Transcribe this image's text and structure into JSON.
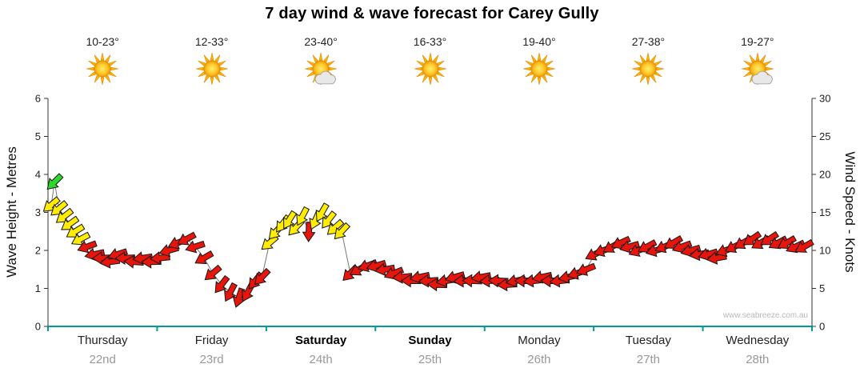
{
  "title": "7 day wind & wave forecast for Carey Gully",
  "watermark": "www.seabreeze.com.au",
  "axes": {
    "left_label": "Wave Height - Metres",
    "right_label": "Wind Speed - Knots",
    "left_ticks": [
      0,
      1,
      2,
      3,
      4,
      5,
      6
    ],
    "right_ticks": [
      0,
      5,
      10,
      15,
      20,
      25,
      30
    ]
  },
  "colors": {
    "axis_bottom": "#009a9a",
    "axis_side": "#333333",
    "arrow_green": "#2cd82c",
    "arrow_yellow": "#ffec00",
    "arrow_red": "#e8150d",
    "trend_line": "#777777"
  },
  "days": [
    {
      "name": "Thursday",
      "date": "22nd",
      "temp": "10-23°",
      "icon": "sunny",
      "bold": false
    },
    {
      "name": "Friday",
      "date": "23rd",
      "temp": "12-33°",
      "icon": "sunny",
      "bold": false
    },
    {
      "name": "Saturday",
      "date": "24th",
      "temp": "23-40°",
      "icon": "partly-cloudy",
      "bold": true
    },
    {
      "name": "Sunday",
      "date": "25th",
      "temp": "16-33°",
      "icon": "sunny",
      "bold": true
    },
    {
      "name": "Monday",
      "date": "26th",
      "temp": "19-40°",
      "icon": "sunny",
      "bold": false
    },
    {
      "name": "Tuesday",
      "date": "27th",
      "temp": "27-38°",
      "icon": "sunny",
      "bold": false
    },
    {
      "name": "Wednesday",
      "date": "28th",
      "temp": "19-27°",
      "icon": "partly-cloudy",
      "bold": false
    }
  ],
  "chart_data": {
    "type": "line",
    "title": "7 day wind & wave forecast for Carey Gully",
    "ylabel_left": "Wave Height - Metres",
    "ylabel_right": "Wind Speed - Knots",
    "ylim_left": [
      0,
      6
    ],
    "ylim_right": [
      0,
      30
    ],
    "x_categories": [
      "Thursday 22nd",
      "Friday 23rd",
      "Saturday 24th",
      "Sunday 25th",
      "Monday 26th",
      "Tuesday 27th",
      "Wednesday 28th"
    ],
    "grid": false,
    "legend": "none",
    "series_note": "wind speed in knots shown as direction arrows; color G=green Y=yellow R=red; t = days from Thursday 00:00; rot = arrow heading in degrees (0=right,90=down,180=left)",
    "wind_points": [
      [
        0.03,
        16.0,
        "Y",
        140
      ],
      [
        0.06,
        19.0,
        "G",
        135
      ],
      [
        0.1,
        15.5,
        "Y",
        140
      ],
      [
        0.15,
        14.5,
        "Y",
        142
      ],
      [
        0.2,
        13.5,
        "Y",
        145
      ],
      [
        0.25,
        12.5,
        "Y",
        148
      ],
      [
        0.3,
        11.5,
        "Y",
        152
      ],
      [
        0.36,
        10.5,
        "R",
        160
      ],
      [
        0.43,
        9.5,
        "R",
        168
      ],
      [
        0.5,
        9.0,
        "R",
        178
      ],
      [
        0.57,
        8.5,
        "R",
        172
      ],
      [
        0.64,
        9.5,
        "R",
        162
      ],
      [
        0.71,
        9.0,
        "R",
        178
      ],
      [
        0.79,
        8.5,
        "R",
        184
      ],
      [
        0.87,
        9.0,
        "R",
        172
      ],
      [
        0.95,
        8.5,
        "R",
        178
      ],
      [
        1.03,
        9.0,
        "R",
        174
      ],
      [
        1.11,
        10.0,
        "R",
        164
      ],
      [
        1.19,
        11.0,
        "R",
        158
      ],
      [
        1.27,
        11.5,
        "R",
        152
      ],
      [
        1.35,
        10.5,
        "R",
        162
      ],
      [
        1.43,
        9.0,
        "R",
        150
      ],
      [
        1.51,
        7.0,
        "R",
        140
      ],
      [
        1.59,
        5.5,
        "R",
        128
      ],
      [
        1.67,
        4.5,
        "R",
        118
      ],
      [
        1.75,
        3.8,
        "R",
        108
      ],
      [
        1.83,
        4.5,
        "R",
        118
      ],
      [
        1.9,
        6.0,
        "R",
        128
      ],
      [
        1.96,
        6.5,
        "R",
        134
      ],
      [
        2.03,
        11.0,
        "Y",
        140
      ],
      [
        2.09,
        12.5,
        "Y",
        133
      ],
      [
        2.15,
        13.5,
        "Y",
        127
      ],
      [
        2.21,
        14.0,
        "Y",
        122
      ],
      [
        2.27,
        13.0,
        "Y",
        133
      ],
      [
        2.33,
        14.5,
        "Y",
        118
      ],
      [
        2.39,
        12.5,
        "R",
        92
      ],
      [
        2.45,
        14.0,
        "Y",
        114
      ],
      [
        2.51,
        15.0,
        "Y",
        120
      ],
      [
        2.57,
        14.0,
        "Y",
        128
      ],
      [
        2.63,
        13.0,
        "Y",
        138
      ],
      [
        2.69,
        12.5,
        "Y",
        133
      ],
      [
        2.77,
        7.0,
        "R",
        135
      ],
      [
        2.85,
        7.5,
        "R",
        150
      ],
      [
        2.93,
        8.0,
        "R",
        160
      ],
      [
        3.01,
        8.0,
        "R",
        164
      ],
      [
        3.09,
        7.5,
        "R",
        170
      ],
      [
        3.17,
        7.0,
        "R",
        158
      ],
      [
        3.25,
        6.5,
        "R",
        174
      ],
      [
        3.33,
        6.0,
        "R",
        180
      ],
      [
        3.41,
        6.5,
        "R",
        168
      ],
      [
        3.49,
        6.0,
        "R",
        176
      ],
      [
        3.57,
        5.5,
        "R",
        182
      ],
      [
        3.65,
        6.0,
        "R",
        170
      ],
      [
        3.73,
        6.5,
        "R",
        164
      ],
      [
        3.81,
        6.0,
        "R",
        176
      ],
      [
        3.89,
        6.0,
        "R",
        182
      ],
      [
        3.97,
        6.5,
        "R",
        170
      ],
      [
        4.05,
        6.0,
        "R",
        176
      ],
      [
        4.13,
        6.0,
        "R",
        182
      ],
      [
        4.21,
        5.5,
        "R",
        176
      ],
      [
        4.29,
        6.0,
        "R",
        168
      ],
      [
        4.37,
        6.0,
        "R",
        180
      ],
      [
        4.45,
        6.0,
        "R",
        174
      ],
      [
        4.53,
        6.5,
        "R",
        168
      ],
      [
        4.61,
        6.0,
        "R",
        180
      ],
      [
        4.69,
        6.0,
        "R",
        174
      ],
      [
        4.77,
        6.5,
        "R",
        168
      ],
      [
        4.85,
        7.0,
        "R",
        162
      ],
      [
        4.93,
        7.5,
        "R",
        158
      ],
      [
        5.01,
        9.5,
        "R",
        154
      ],
      [
        5.09,
        10.0,
        "R",
        160
      ],
      [
        5.17,
        10.5,
        "R",
        150
      ],
      [
        5.25,
        11.0,
        "R",
        155
      ],
      [
        5.33,
        10.5,
        "R",
        164
      ],
      [
        5.41,
        10.0,
        "R",
        158
      ],
      [
        5.49,
        10.5,
        "R",
        152
      ],
      [
        5.57,
        10.0,
        "R",
        164
      ],
      [
        5.65,
        10.5,
        "R",
        157
      ],
      [
        5.73,
        11.0,
        "R",
        150
      ],
      [
        5.81,
        10.5,
        "R",
        160
      ],
      [
        5.89,
        10.0,
        "R",
        164
      ],
      [
        5.97,
        9.5,
        "R",
        170
      ],
      [
        6.05,
        9.5,
        "R",
        164
      ],
      [
        6.13,
        9.0,
        "R",
        170
      ],
      [
        6.21,
        10.0,
        "R",
        160
      ],
      [
        6.29,
        10.5,
        "R",
        154
      ],
      [
        6.37,
        11.0,
        "R",
        150
      ],
      [
        6.45,
        11.5,
        "R",
        146
      ],
      [
        6.53,
        11.0,
        "R",
        150
      ],
      [
        6.61,
        11.5,
        "R",
        147
      ],
      [
        6.69,
        11.0,
        "R",
        152
      ],
      [
        6.77,
        11.0,
        "R",
        150
      ],
      [
        6.85,
        10.5,
        "R",
        155
      ],
      [
        6.93,
        10.5,
        "R",
        150
      ]
    ]
  }
}
